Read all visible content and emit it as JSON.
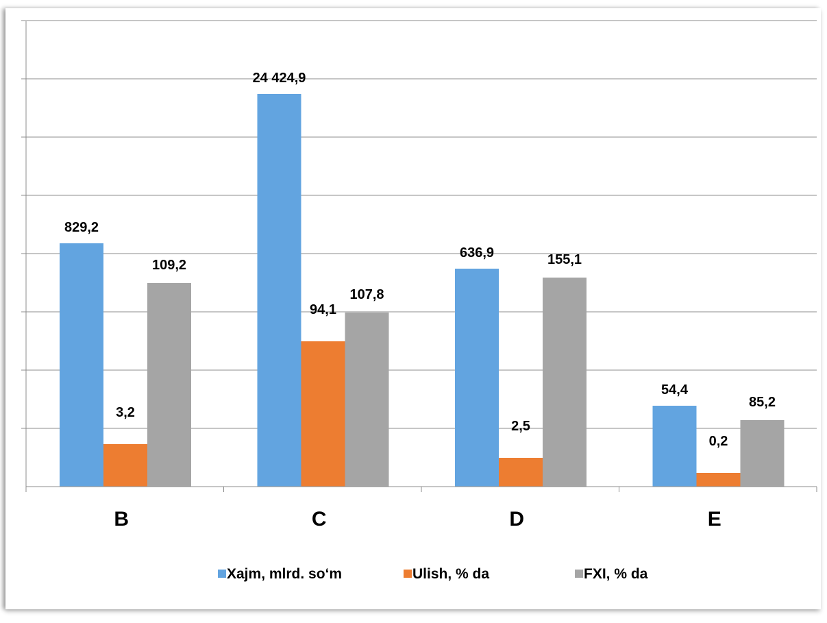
{
  "chart_data": {
    "type": "bar",
    "categories": [
      "B",
      "C",
      "D",
      "E"
    ],
    "series": [
      {
        "name": "Xajm, mlrd. so‘m",
        "color": "#62A4E0",
        "value_labels": [
          "829,2",
          "24 424,9",
          "636,9",
          "54,4"
        ],
        "values": [
          829.2,
          24424.9,
          636.9,
          54.4
        ]
      },
      {
        "name": "Ulish, % da",
        "color": "#ED7D31",
        "value_labels": [
          "3,2",
          "94,1",
          "2,5",
          "0,2"
        ],
        "values": [
          3.2,
          94.1,
          2.5,
          0.2
        ]
      },
      {
        "name": "FXI, % da",
        "color": "#A5A5A5",
        "value_labels": [
          "109,2",
          "107,8",
          "155,1",
          "85,2"
        ],
        "values": [
          109.2,
          107.8,
          155.1,
          85.2
        ]
      }
    ],
    "grid": true,
    "legend_position": "bottom"
  }
}
